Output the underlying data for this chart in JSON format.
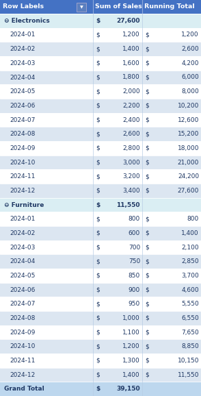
{
  "header": [
    "Row Labels",
    "Sum of Sales",
    "Running Total"
  ],
  "rows": [
    {
      "label": "⊖ Electronics",
      "indent": 0,
      "sales_dollar": "$",
      "sales_val": "27,600",
      "rt_dollar": "",
      "rt_val": "",
      "bold": true,
      "category": true,
      "bg": "#DAEEF3"
    },
    {
      "label": "2024-01",
      "indent": 1,
      "sales_dollar": "$",
      "sales_val": "1,200",
      "rt_dollar": "$",
      "rt_val": "1,200",
      "bold": false,
      "category": false,
      "bg": "#FFFFFF"
    },
    {
      "label": "2024-02",
      "indent": 1,
      "sales_dollar": "$",
      "sales_val": "1,400",
      "rt_dollar": "$",
      "rt_val": "2,600",
      "bold": false,
      "category": false,
      "bg": "#DCE6F1"
    },
    {
      "label": "2024-03",
      "indent": 1,
      "sales_dollar": "$",
      "sales_val": "1,600",
      "rt_dollar": "$",
      "rt_val": "4,200",
      "bold": false,
      "category": false,
      "bg": "#FFFFFF"
    },
    {
      "label": "2024-04",
      "indent": 1,
      "sales_dollar": "$",
      "sales_val": "1,800",
      "rt_dollar": "$",
      "rt_val": "6,000",
      "bold": false,
      "category": false,
      "bg": "#DCE6F1"
    },
    {
      "label": "2024-05",
      "indent": 1,
      "sales_dollar": "$",
      "sales_val": "2,000",
      "rt_dollar": "$",
      "rt_val": "8,000",
      "bold": false,
      "category": false,
      "bg": "#FFFFFF"
    },
    {
      "label": "2024-06",
      "indent": 1,
      "sales_dollar": "$",
      "sales_val": "2,200",
      "rt_dollar": "$",
      "rt_val": "10,200",
      "bold": false,
      "category": false,
      "bg": "#DCE6F1"
    },
    {
      "label": "2024-07",
      "indent": 1,
      "sales_dollar": "$",
      "sales_val": "2,400",
      "rt_dollar": "$",
      "rt_val": "12,600",
      "bold": false,
      "category": false,
      "bg": "#FFFFFF"
    },
    {
      "label": "2024-08",
      "indent": 1,
      "sales_dollar": "$",
      "sales_val": "2,600",
      "rt_dollar": "$",
      "rt_val": "15,200",
      "bold": false,
      "category": false,
      "bg": "#DCE6F1"
    },
    {
      "label": "2024-09",
      "indent": 1,
      "sales_dollar": "$",
      "sales_val": "2,800",
      "rt_dollar": "$",
      "rt_val": "18,000",
      "bold": false,
      "category": false,
      "bg": "#FFFFFF"
    },
    {
      "label": "2024-10",
      "indent": 1,
      "sales_dollar": "$",
      "sales_val": "3,000",
      "rt_dollar": "$",
      "rt_val": "21,000",
      "bold": false,
      "category": false,
      "bg": "#DCE6F1"
    },
    {
      "label": "2024-11",
      "indent": 1,
      "sales_dollar": "$",
      "sales_val": "3,200",
      "rt_dollar": "$",
      "rt_val": "24,200",
      "bold": false,
      "category": false,
      "bg": "#FFFFFF"
    },
    {
      "label": "2024-12",
      "indent": 1,
      "sales_dollar": "$",
      "sales_val": "3,400",
      "rt_dollar": "$",
      "rt_val": "27,600",
      "bold": false,
      "category": false,
      "bg": "#DCE6F1"
    },
    {
      "label": "⊖ Furniture",
      "indent": 0,
      "sales_dollar": "$",
      "sales_val": "11,550",
      "rt_dollar": "",
      "rt_val": "",
      "bold": true,
      "category": true,
      "bg": "#DAEEF3"
    },
    {
      "label": "2024-01",
      "indent": 1,
      "sales_dollar": "$",
      "sales_val": "800",
      "rt_dollar": "$",
      "rt_val": "800",
      "bold": false,
      "category": false,
      "bg": "#FFFFFF"
    },
    {
      "label": "2024-02",
      "indent": 1,
      "sales_dollar": "$",
      "sales_val": "600",
      "rt_dollar": "$",
      "rt_val": "1,400",
      "bold": false,
      "category": false,
      "bg": "#DCE6F1"
    },
    {
      "label": "2024-03",
      "indent": 1,
      "sales_dollar": "$",
      "sales_val": "700",
      "rt_dollar": "$",
      "rt_val": "2,100",
      "bold": false,
      "category": false,
      "bg": "#FFFFFF"
    },
    {
      "label": "2024-04",
      "indent": 1,
      "sales_dollar": "$",
      "sales_val": "750",
      "rt_dollar": "$",
      "rt_val": "2,850",
      "bold": false,
      "category": false,
      "bg": "#DCE6F1"
    },
    {
      "label": "2024-05",
      "indent": 1,
      "sales_dollar": "$",
      "sales_val": "850",
      "rt_dollar": "$",
      "rt_val": "3,700",
      "bold": false,
      "category": false,
      "bg": "#FFFFFF"
    },
    {
      "label": "2024-06",
      "indent": 1,
      "sales_dollar": "$",
      "sales_val": "900",
      "rt_dollar": "$",
      "rt_val": "4,600",
      "bold": false,
      "category": false,
      "bg": "#DCE6F1"
    },
    {
      "label": "2024-07",
      "indent": 1,
      "sales_dollar": "$",
      "sales_val": "950",
      "rt_dollar": "$",
      "rt_val": "5,550",
      "bold": false,
      "category": false,
      "bg": "#FFFFFF"
    },
    {
      "label": "2024-08",
      "indent": 1,
      "sales_dollar": "$",
      "sales_val": "1,000",
      "rt_dollar": "$",
      "rt_val": "6,550",
      "bold": false,
      "category": false,
      "bg": "#DCE6F1"
    },
    {
      "label": "2024-09",
      "indent": 1,
      "sales_dollar": "$",
      "sales_val": "1,100",
      "rt_dollar": "$",
      "rt_val": "7,650",
      "bold": false,
      "category": false,
      "bg": "#FFFFFF"
    },
    {
      "label": "2024-10",
      "indent": 1,
      "sales_dollar": "$",
      "sales_val": "1,200",
      "rt_dollar": "$",
      "rt_val": "8,850",
      "bold": false,
      "category": false,
      "bg": "#DCE6F1"
    },
    {
      "label": "2024-11",
      "indent": 1,
      "sales_dollar": "$",
      "sales_val": "1,300",
      "rt_dollar": "$",
      "rt_val": "10,150",
      "bold": false,
      "category": false,
      "bg": "#FFFFFF"
    },
    {
      "label": "2024-12",
      "indent": 1,
      "sales_dollar": "$",
      "sales_val": "1,400",
      "rt_dollar": "$",
      "rt_val": "11,550",
      "bold": false,
      "category": false,
      "bg": "#DCE6F1"
    },
    {
      "label": "Grand Total",
      "indent": 0,
      "sales_dollar": "$",
      "sales_val": "39,150",
      "rt_dollar": "",
      "rt_val": "",
      "bold": true,
      "category": false,
      "bg": "#BDD7EE"
    }
  ],
  "header_bg": "#4472C4",
  "header_text_color": "#FFFFFF",
  "grand_total_bg": "#BDD7EE",
  "grand_total_text_color": "#1F3864",
  "category_text_color": "#1F3864",
  "data_text_color": "#1F3864",
  "border_color": "#FFFFFF",
  "col_border_color": "#B8CCE4",
  "fig_width": 2.94,
  "fig_height": 5.78,
  "dpi": 100,
  "font_size": 6.5,
  "header_font_size": 6.8
}
